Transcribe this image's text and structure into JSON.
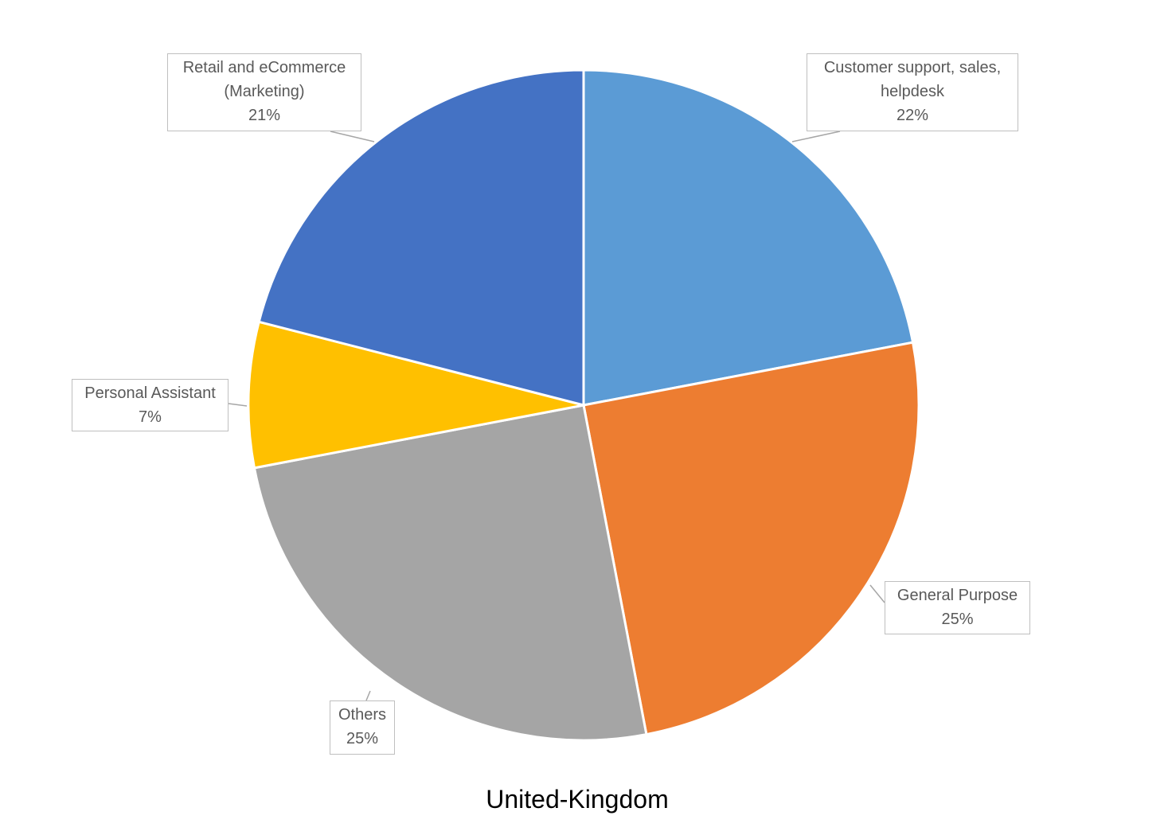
{
  "chart_data": {
    "type": "pie",
    "title": "United-Kingdom",
    "categories": [
      "Customer support, sales, helpdesk",
      "General Purpose",
      "Others",
      "Personal Assistant",
      "Retail and eCommerce (Marketing)"
    ],
    "values": [
      22,
      25,
      25,
      7,
      21
    ],
    "value_labels": [
      "22%",
      "25%",
      "25%",
      "7%",
      "21%"
    ],
    "colors": [
      "#5b9bd5",
      "#ed7d31",
      "#a5a5a5",
      "#ffc000",
      "#4472c4"
    ]
  }
}
